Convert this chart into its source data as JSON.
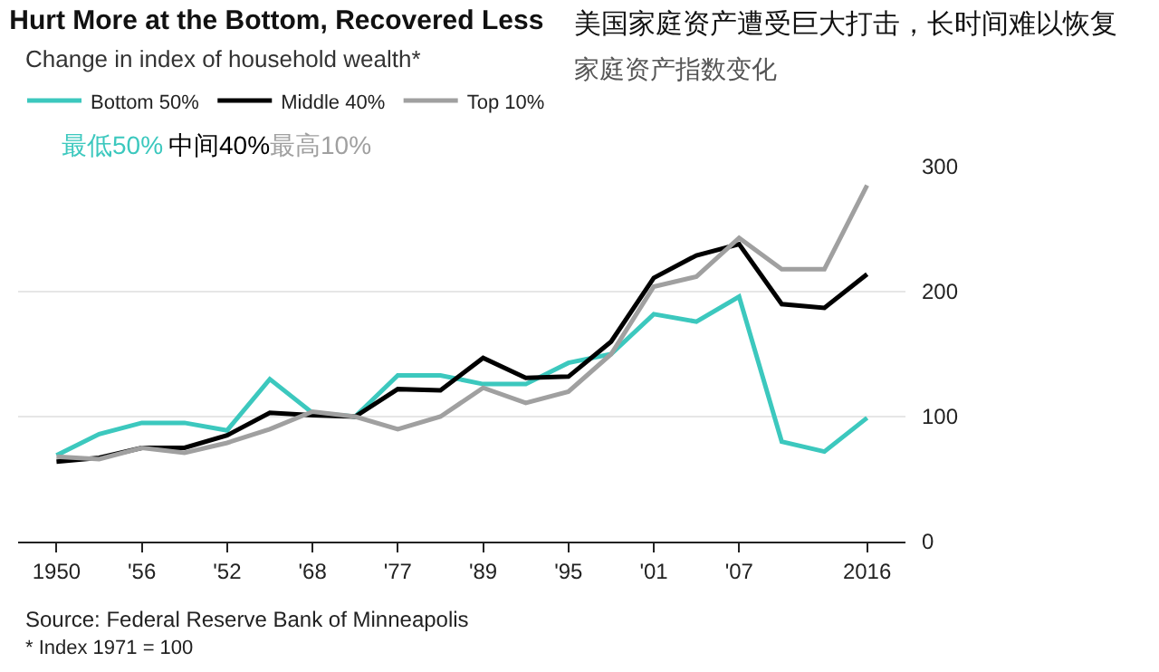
{
  "chart_data": {
    "type": "line",
    "title": "Hurt More at the Bottom, Recovered Less",
    "subtitle": "Change in index of household wealth*",
    "categories": [
      "1950",
      null,
      "'56",
      null,
      "'52",
      null,
      "'68",
      null,
      "'77",
      null,
      "'89",
      null,
      "'95",
      null,
      "'01",
      null,
      "'07",
      null,
      null,
      "2016"
    ],
    "series": [
      {
        "name": "Bottom 50%",
        "color": "#3cc8be",
        "values": [
          69,
          86,
          95,
          95,
          89,
          130,
          103,
          100,
          133,
          133,
          126,
          126,
          143,
          150,
          182,
          176,
          196,
          80,
          72,
          99
        ]
      },
      {
        "name": "Middle 40%",
        "color": "#000000",
        "values": [
          64,
          67,
          75,
          75,
          85,
          103,
          101,
          100,
          122,
          121,
          147,
          131,
          132,
          160,
          211,
          229,
          238,
          190,
          187,
          214
        ]
      },
      {
        "name": "Top 10%",
        "color": "#a0a0a0",
        "values": [
          68,
          66,
          75,
          71,
          79,
          90,
          104,
          100,
          90,
          100,
          123,
          111,
          120,
          150,
          204,
          212,
          243,
          218,
          218,
          285
        ]
      }
    ],
    "ylim": [
      0,
      300
    ],
    "yticks": [
      0,
      100,
      200,
      300
    ],
    "grid": "y",
    "legend": "top left",
    "marker": "none",
    "line_style": "solid",
    "annotations": [
      "Source: Federal Reserve Bank of Minneapolis",
      "* Index 1971 = 100",
      "美国家庭资产遭受巨大打击，长时间难以恢复",
      "家庭资产指数变化",
      "最低50%",
      "中间40%",
      "最高10%"
    ]
  }
}
